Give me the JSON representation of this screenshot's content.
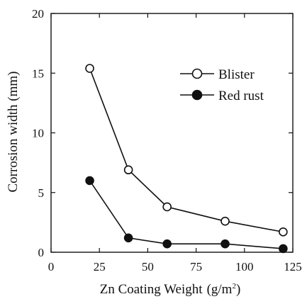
{
  "chart_data": {
    "type": "line",
    "title": "",
    "xlabel": "Zn Coating Weight",
    "xlabel_unit_open": "(g/m",
    "xlabel_unit_sup": "2",
    "xlabel_unit_close": ")",
    "ylabel": "Corrosion width (mm)",
    "xlim": [
      0,
      125
    ],
    "ylim": [
      0,
      20
    ],
    "xticks": [
      0,
      25,
      50,
      75,
      100,
      125
    ],
    "yticks": [
      0,
      5,
      10,
      15,
      20
    ],
    "grid": false,
    "legend_position": "top-right",
    "series": [
      {
        "name": "Blister",
        "marker": "open-circle",
        "color": "#111111",
        "x": [
          20,
          40,
          60,
          90,
          120
        ],
        "y": [
          15.4,
          6.9,
          3.8,
          2.6,
          1.7
        ]
      },
      {
        "name": "Red rust",
        "marker": "filled-circle",
        "color": "#111111",
        "x": [
          20,
          40,
          60,
          90,
          120
        ],
        "y": [
          6.0,
          1.2,
          0.7,
          0.7,
          0.3
        ]
      }
    ]
  }
}
